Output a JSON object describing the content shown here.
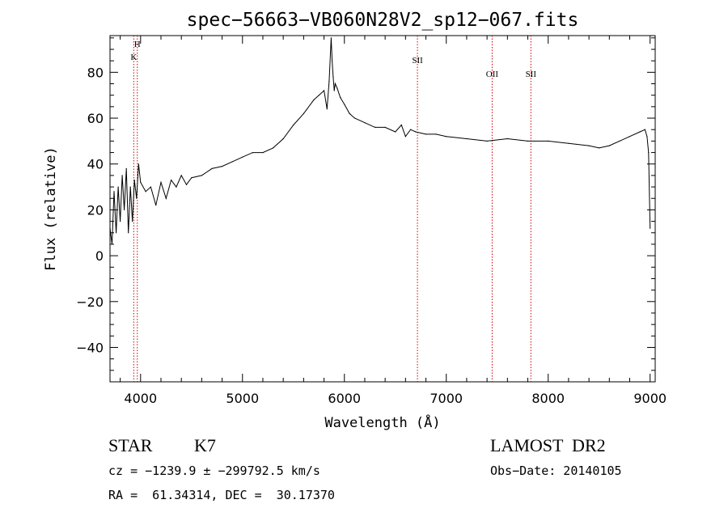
{
  "chart_data": {
    "type": "line",
    "title": "spec−56663−VB060N28V2_sp12−067.fits",
    "xlabel": "Wavelength (Å)",
    "ylabel": "Flux (relative)",
    "xlim": [
      3700,
      9050
    ],
    "ylim": [
      -55,
      96
    ],
    "xticks": [
      4000,
      5000,
      6000,
      7000,
      8000,
      9000
    ],
    "xtick_labels": [
      "4000",
      "5000",
      "6000",
      "7000",
      "8000",
      "9000"
    ],
    "yticks": [
      -40,
      -20,
      0,
      20,
      40,
      60,
      80
    ],
    "ytick_labels": [
      "−40",
      "−20",
      "0",
      "20",
      "40",
      "60",
      "80"
    ],
    "series": [
      {
        "x": [
          3700,
          3720,
          3740,
          3760,
          3780,
          3800,
          3820,
          3840,
          3860,
          3880,
          3900,
          3920,
          3940,
          3960,
          3980,
          4000,
          4050,
          4100,
          4150,
          4200,
          4250,
          4300,
          4350,
          4400,
          4450,
          4500,
          4600,
          4700,
          4800,
          4900,
          5000,
          5100,
          5200,
          5300,
          5400,
          5500,
          5600,
          5700,
          5750,
          5800,
          5830,
          5850,
          5870,
          5880,
          5890,
          5900,
          5910,
          5930,
          5960,
          6000,
          6050,
          6100,
          6200,
          6300,
          6400,
          6500,
          6560,
          6600,
          6650,
          6700,
          6800,
          6900,
          7000,
          7200,
          7400,
          7600,
          7800,
          8000,
          8200,
          8400,
          8500,
          8600,
          8700,
          8800,
          8900,
          8950,
          8970,
          8985,
          9000
        ],
        "y": [
          12,
          5,
          28,
          10,
          30,
          15,
          35,
          20,
          38,
          10,
          30,
          15,
          33,
          25,
          40,
          32,
          28,
          30,
          22,
          32,
          25,
          33,
          30,
          35,
          31,
          34,
          35,
          38,
          39,
          41,
          43,
          45,
          45,
          47,
          51,
          57,
          62,
          68,
          70,
          72,
          64,
          76,
          95,
          85,
          78,
          72,
          75,
          73,
          69,
          66,
          62,
          60,
          58,
          56,
          56,
          54,
          57,
          52,
          55,
          54,
          53,
          53,
          52,
          51,
          50,
          51,
          50,
          50,
          49,
          48,
          47,
          48,
          50,
          52,
          54,
          55,
          52,
          45,
          12
        ]
      }
    ],
    "lines": [
      {
        "x": 3933,
        "label": "K"
      },
      {
        "x": 3968,
        "label": "H"
      },
      {
        "x": 6717,
        "label": "SII"
      },
      {
        "x": 7450,
        "label": "OII"
      },
      {
        "x": 7830,
        "label": "SII"
      }
    ],
    "line_color": "#cc0000"
  },
  "info": {
    "class": "STAR",
    "subclass": "K7",
    "survey": "LAMOST  DR2",
    "cz": "cz = −1239.9 ± −299792.5 km/s",
    "obs_date": "Obs−Date: 20140105",
    "radec": "RA =  61.34314, DEC =  30.17370"
  }
}
